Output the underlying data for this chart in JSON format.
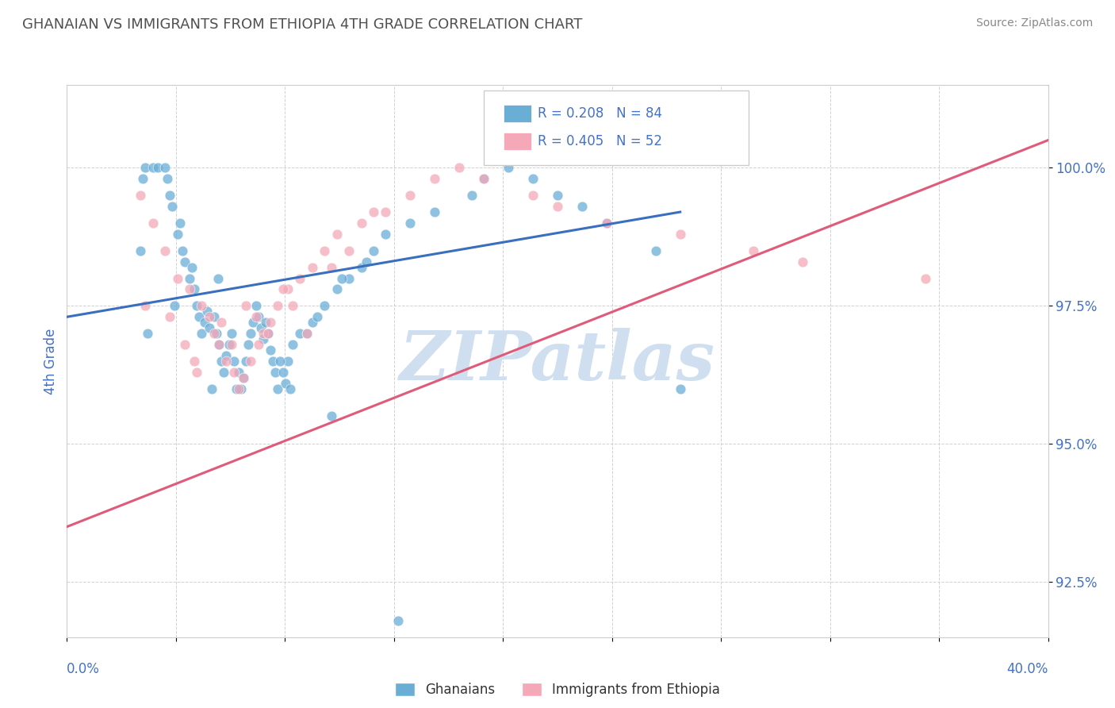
{
  "title": "GHANAIAN VS IMMIGRANTS FROM ETHIOPIA 4TH GRADE CORRELATION CHART",
  "source_text": "Source: ZipAtlas.com",
  "ylabel": "4th Grade",
  "yticks": [
    92.5,
    95.0,
    97.5,
    100.0
  ],
  "ytick_labels": [
    "92.5%",
    "95.0%",
    "97.5%",
    "100.0%"
  ],
  "xlim": [
    0.0,
    40.0
  ],
  "ylim": [
    91.5,
    101.5
  ],
  "color_blue": "#6aaed6",
  "color_pink": "#f4a8b8",
  "color_blue_line": "#3a6fbf",
  "color_pink_line": "#e05a7a",
  "color_title": "#505050",
  "color_axis_labels": "#4472c4",
  "watermark_color": "#d0dff0",
  "blue_scatter_x": [
    3.2,
    3.5,
    3.7,
    4.0,
    4.1,
    4.2,
    4.3,
    4.5,
    4.6,
    4.7,
    4.8,
    5.0,
    5.1,
    5.2,
    5.3,
    5.4,
    5.5,
    5.6,
    5.7,
    5.8,
    6.0,
    6.1,
    6.2,
    6.3,
    6.4,
    6.5,
    6.6,
    6.7,
    6.8,
    7.0,
    7.1,
    7.2,
    7.3,
    7.4,
    7.5,
    7.6,
    7.7,
    7.8,
    7.9,
    8.0,
    8.1,
    8.2,
    8.3,
    8.4,
    8.5,
    8.6,
    9.0,
    9.2,
    9.5,
    10.0,
    10.5,
    11.0,
    11.5,
    12.0,
    12.5,
    13.0,
    14.0,
    15.0,
    16.5,
    17.0,
    18.0,
    19.0,
    20.0,
    21.0,
    22.0,
    24.0,
    3.0,
    3.1,
    5.9,
    6.9,
    8.7,
    8.8,
    8.9,
    9.8,
    10.2,
    11.2,
    12.2,
    3.3,
    4.4,
    6.15,
    9.1,
    10.8,
    13.5,
    25.0
  ],
  "blue_scatter_y": [
    100.0,
    100.0,
    100.0,
    100.0,
    99.8,
    99.5,
    99.3,
    98.8,
    99.0,
    98.5,
    98.3,
    98.0,
    98.2,
    97.8,
    97.5,
    97.3,
    97.0,
    97.2,
    97.4,
    97.1,
    97.3,
    97.0,
    96.8,
    96.5,
    96.3,
    96.6,
    96.8,
    97.0,
    96.5,
    96.3,
    96.0,
    96.2,
    96.5,
    96.8,
    97.0,
    97.2,
    97.5,
    97.3,
    97.1,
    96.9,
    97.2,
    97.0,
    96.7,
    96.5,
    96.3,
    96.0,
    96.5,
    96.8,
    97.0,
    97.2,
    97.5,
    97.8,
    98.0,
    98.2,
    98.5,
    98.8,
    99.0,
    99.2,
    99.5,
    99.8,
    100.0,
    99.8,
    99.5,
    99.3,
    99.0,
    98.5,
    98.5,
    99.8,
    96.0,
    96.0,
    96.5,
    96.3,
    96.1,
    97.0,
    97.3,
    98.0,
    98.3,
    97.0,
    97.5,
    98.0,
    96.0,
    95.5,
    91.8,
    96.0
  ],
  "pink_scatter_x": [
    3.0,
    3.5,
    4.0,
    4.5,
    5.0,
    5.5,
    5.8,
    6.0,
    6.2,
    6.5,
    6.8,
    7.0,
    7.2,
    7.5,
    7.8,
    8.0,
    8.3,
    8.6,
    9.0,
    9.5,
    10.0,
    10.5,
    11.0,
    12.0,
    13.0,
    14.0,
    15.0,
    16.0,
    17.0,
    19.0,
    20.0,
    22.0,
    25.0,
    28.0,
    30.0,
    35.0,
    4.2,
    4.8,
    6.3,
    7.3,
    8.8,
    9.8,
    11.5,
    3.2,
    5.2,
    5.3,
    6.7,
    7.7,
    8.2,
    9.2,
    10.8,
    12.5
  ],
  "pink_scatter_y": [
    99.5,
    99.0,
    98.5,
    98.0,
    97.8,
    97.5,
    97.3,
    97.0,
    96.8,
    96.5,
    96.3,
    96.0,
    96.2,
    96.5,
    96.8,
    97.0,
    97.2,
    97.5,
    97.8,
    98.0,
    98.2,
    98.5,
    98.8,
    99.0,
    99.2,
    99.5,
    99.8,
    100.0,
    99.8,
    99.5,
    99.3,
    99.0,
    98.8,
    98.5,
    98.3,
    98.0,
    97.3,
    96.8,
    97.2,
    97.5,
    97.8,
    97.0,
    98.5,
    97.5,
    96.5,
    96.3,
    96.8,
    97.3,
    97.0,
    97.5,
    98.2,
    99.2
  ],
  "blue_line_x": [
    0.0,
    25.0
  ],
  "blue_line_y": [
    97.3,
    99.2
  ],
  "pink_line_x": [
    0.0,
    40.0
  ],
  "pink_line_y": [
    93.5,
    100.5
  ]
}
